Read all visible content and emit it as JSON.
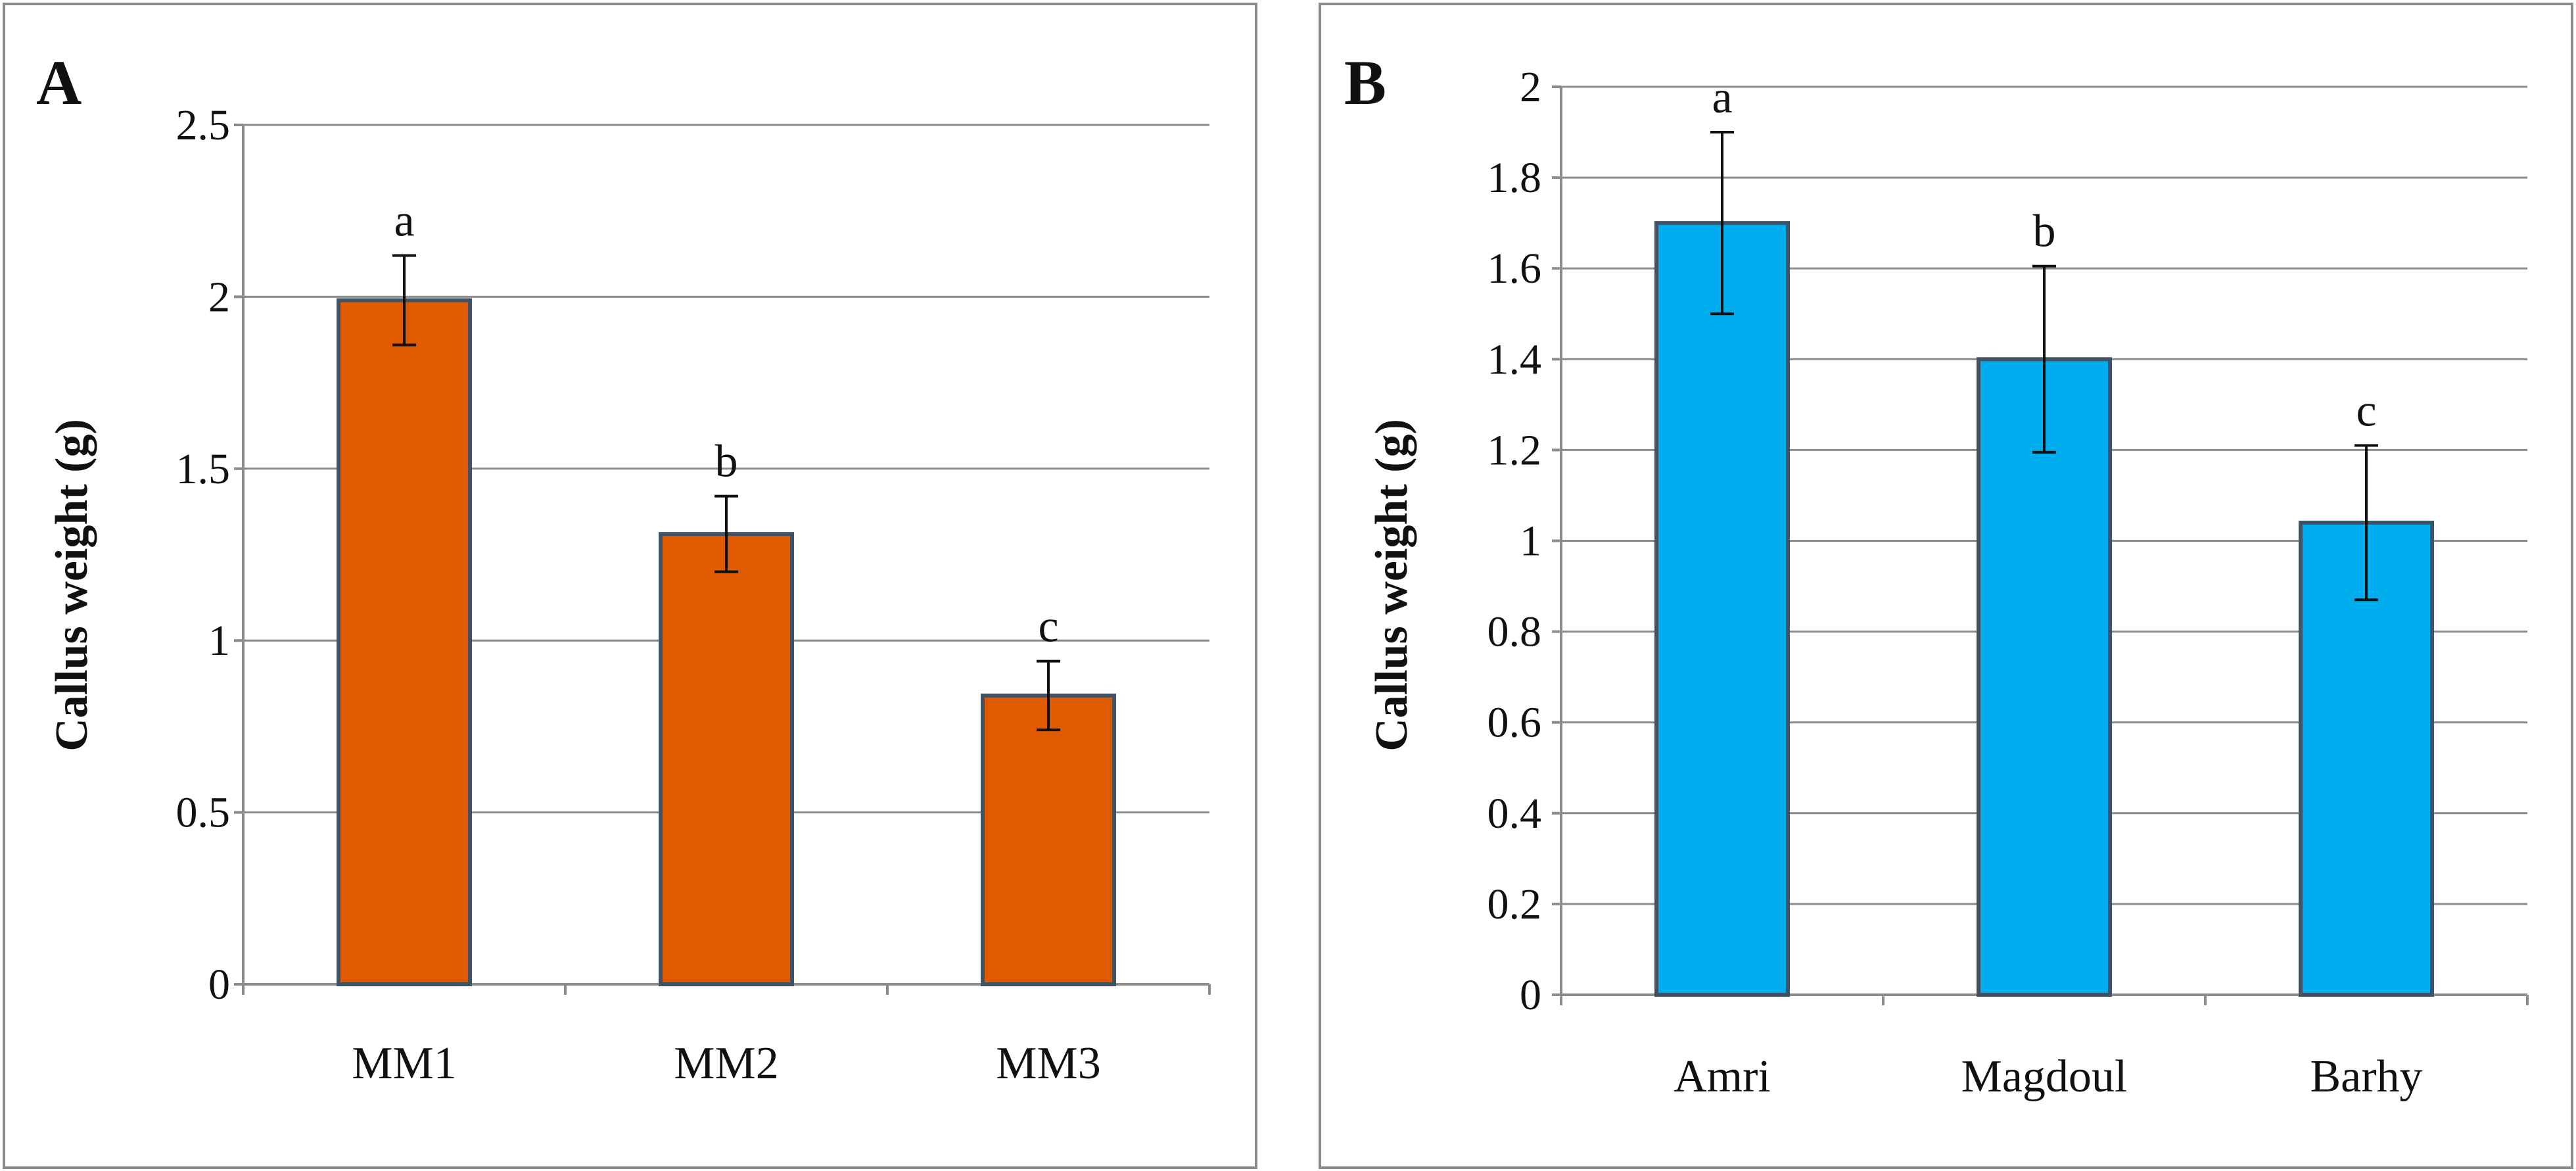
{
  "chart_data": [
    {
      "type": "bar",
      "panel": "A",
      "categories": [
        "MM1",
        "MM2",
        "MM3"
      ],
      "values": [
        1.99,
        1.31,
        0.84
      ],
      "errors": [
        0.13,
        0.11,
        0.1
      ],
      "significance": [
        "a",
        "b",
        "c"
      ],
      "ylabel": "Callus weight (g)",
      "xlabel": "",
      "ylim": [
        0,
        2.5
      ],
      "yticks": [
        0,
        0.5,
        1,
        1.5,
        2,
        2.5
      ],
      "ytick_labels": [
        "0",
        "0.5",
        "1",
        "1.5",
        "2",
        "2.5"
      ],
      "grid": true,
      "color": "#e05a00"
    },
    {
      "type": "bar",
      "panel": "B",
      "categories": [
        "Amri",
        "Magdoul",
        "Barhy"
      ],
      "values": [
        1.7,
        1.4,
        1.04
      ],
      "errors": [
        0.2,
        0.205,
        0.17
      ],
      "significance": [
        "a",
        "b",
        "c"
      ],
      "ylabel": "Callus weight (g)",
      "xlabel": "",
      "ylim": [
        0,
        2
      ],
      "yticks": [
        0,
        0.2,
        0.4,
        0.6,
        0.8,
        1,
        1.2,
        1.4,
        1.6,
        1.8,
        2
      ],
      "ytick_labels": [
        "0",
        "0.2",
        "0.4",
        "0.6",
        "0.8",
        "1",
        "1.2",
        "1.4",
        "1.6",
        "1.8",
        "2"
      ],
      "grid": true,
      "color": "#00aeef"
    }
  ]
}
